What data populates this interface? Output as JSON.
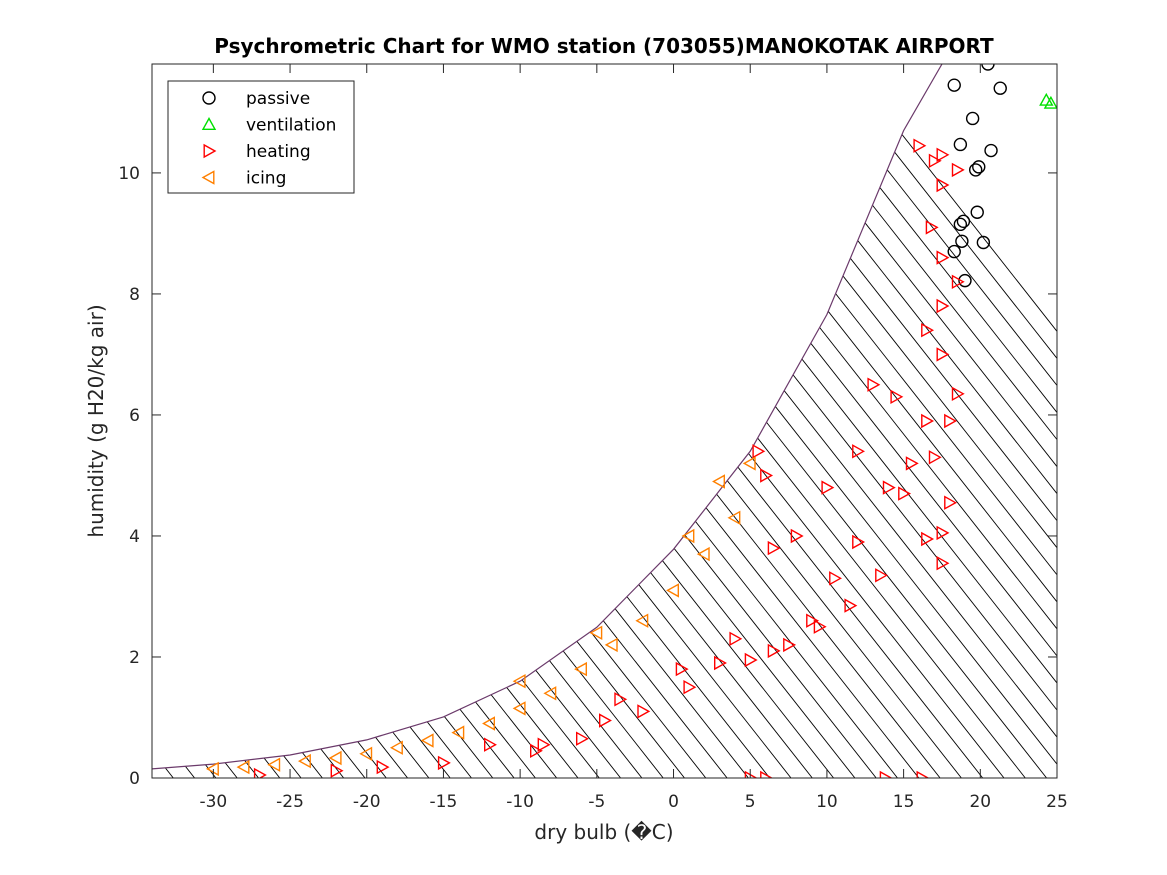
{
  "chart_data": {
    "type": "scatter",
    "title": "Psychrometric Chart for WMO station (703055)MANOKOTAK AIRPORT",
    "xlabel": "dry bulb (�C)",
    "ylabel": "humidity (g H20/kg air)",
    "xlim": [
      -34,
      25
    ],
    "ylim": [
      0,
      11.8
    ],
    "xticks": [
      -30,
      -25,
      -20,
      -15,
      -10,
      -5,
      0,
      5,
      10,
      15,
      20,
      25
    ],
    "yticks": [
      0,
      2,
      4,
      6,
      8,
      10
    ],
    "xtick_labels": [
      "-30",
      "-25",
      "-20",
      "-15",
      "-10",
      "-5",
      "0",
      "5",
      "10",
      "15",
      "20",
      "25"
    ],
    "ytick_labels": [
      "0",
      "2",
      "4",
      "6",
      "8",
      "10"
    ],
    "grid": false,
    "legend_position": "top-left",
    "saturation_curve": {
      "color": "#6b3a6b",
      "x": [
        -34,
        -30,
        -25,
        -20,
        -15,
        -10,
        -5,
        0,
        5,
        10,
        15,
        17.5
      ],
      "y": [
        0.15,
        0.23,
        0.38,
        0.63,
        1.01,
        1.6,
        2.49,
        3.78,
        5.4,
        7.66,
        10.7,
        11.8
      ]
    },
    "series": [
      {
        "name": "passive",
        "marker": "circle",
        "color": "#000000",
        "points": [
          [
            20.5,
            11.8
          ],
          [
            21.3,
            11.4
          ],
          [
            18.3,
            11.45
          ],
          [
            19.5,
            10.9
          ],
          [
            18.7,
            10.47
          ],
          [
            20.7,
            10.37
          ],
          [
            19.9,
            10.1
          ],
          [
            19.7,
            10.05
          ],
          [
            19.8,
            9.35
          ],
          [
            18.9,
            9.2
          ],
          [
            18.7,
            9.15
          ],
          [
            18.8,
            8.87
          ],
          [
            20.2,
            8.85
          ],
          [
            18.3,
            8.7
          ],
          [
            19.0,
            8.22
          ]
        ]
      },
      {
        "name": "ventilation",
        "marker": "triangle-up",
        "color": "#00e000",
        "points": [
          [
            24.3,
            11.2
          ],
          [
            24.6,
            11.15
          ]
        ]
      },
      {
        "name": "heating",
        "marker": "triangle-right",
        "color": "#ff0000",
        "points": [
          [
            5.0,
            0.0
          ],
          [
            6.0,
            0.0
          ],
          [
            13.8,
            0.0
          ],
          [
            16.2,
            0.0
          ],
          [
            -27.0,
            0.05
          ],
          [
            -12.0,
            0.55
          ],
          [
            -8.5,
            0.55
          ],
          [
            -4.5,
            0.95
          ],
          [
            -3.5,
            1.3
          ],
          [
            0.5,
            1.8
          ],
          [
            3.0,
            1.9
          ],
          [
            5.0,
            1.95
          ],
          [
            6.5,
            2.1
          ],
          [
            9.0,
            2.6
          ],
          [
            11.5,
            2.85
          ],
          [
            13.5,
            3.35
          ],
          [
            16.5,
            3.95
          ],
          [
            17.5,
            4.05
          ],
          [
            17.5,
            3.55
          ],
          [
            18.0,
            4.55
          ],
          [
            15.0,
            4.7
          ],
          [
            17.0,
            5.3
          ],
          [
            18.0,
            5.9
          ],
          [
            18.5,
            6.35
          ],
          [
            16.5,
            5.9
          ],
          [
            17.5,
            7.0
          ],
          [
            16.5,
            7.4
          ],
          [
            17.5,
            7.8
          ],
          [
            18.5,
            8.2
          ],
          [
            17.5,
            8.6
          ],
          [
            16.8,
            9.1
          ],
          [
            17.5,
            9.8
          ],
          [
            18.5,
            10.05
          ],
          [
            16.0,
            10.45
          ],
          [
            17.0,
            10.2
          ],
          [
            17.5,
            10.3
          ],
          [
            7.5,
            2.2
          ],
          [
            9.5,
            2.5
          ],
          [
            10.5,
            3.3
          ],
          [
            12.0,
            3.9
          ],
          [
            14.0,
            4.8
          ],
          [
            15.5,
            5.2
          ],
          [
            14.5,
            6.3
          ],
          [
            13.0,
            6.5
          ],
          [
            12.0,
            5.4
          ],
          [
            10.0,
            4.8
          ],
          [
            8.0,
            4.0
          ],
          [
            6.5,
            3.8
          ],
          [
            5.5,
            5.4
          ],
          [
            6.0,
            5.0
          ],
          [
            -9.0,
            0.45
          ],
          [
            -6.0,
            0.65
          ],
          [
            -2.0,
            1.1
          ],
          [
            1.0,
            1.5
          ],
          [
            4.0,
            2.3
          ],
          [
            -15.0,
            0.25
          ],
          [
            -19.0,
            0.18
          ],
          [
            -22.0,
            0.12
          ]
        ]
      },
      {
        "name": "icing",
        "marker": "triangle-left",
        "color": "#ff8000",
        "points": [
          [
            -30.0,
            0.15
          ],
          [
            -28.0,
            0.18
          ],
          [
            -26.0,
            0.22
          ],
          [
            -24.0,
            0.28
          ],
          [
            -22.0,
            0.33
          ],
          [
            -20.0,
            0.4
          ],
          [
            -18.0,
            0.5
          ],
          [
            -16.0,
            0.62
          ],
          [
            -14.0,
            0.75
          ],
          [
            -12.0,
            0.9
          ],
          [
            -10.0,
            1.15
          ],
          [
            -8.0,
            1.4
          ],
          [
            -6.0,
            1.8
          ],
          [
            -4.0,
            2.2
          ],
          [
            -2.0,
            2.6
          ],
          [
            0.0,
            3.1
          ],
          [
            2.0,
            3.7
          ],
          [
            4.0,
            4.3
          ],
          [
            5.0,
            5.2
          ],
          [
            -10.0,
            1.6
          ],
          [
            -5.0,
            2.4
          ],
          [
            3.0,
            4.9
          ],
          [
            1.0,
            4.0
          ]
        ]
      }
    ]
  }
}
